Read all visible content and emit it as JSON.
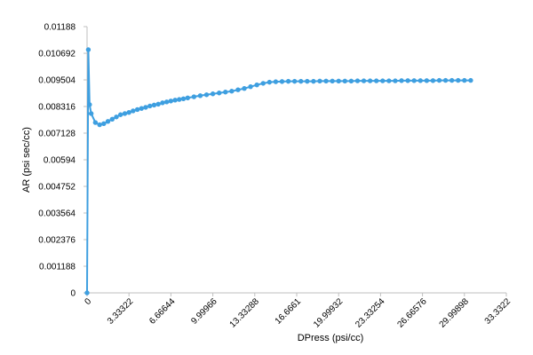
{
  "chart_data": {
    "type": "line",
    "title": "",
    "xlabel": "DPress (psi/cc)",
    "ylabel": "AR (psi sec/cc)",
    "xlim": [
      0,
      33.3322
    ],
    "ylim": [
      0,
      0.01188
    ],
    "x_ticks": [
      "0",
      "3.33322",
      "6.66644",
      "9.99966",
      "13.33288",
      "16.6661",
      "19.99932",
      "23.33254",
      "26.66576",
      "29.99898",
      "33.3322"
    ],
    "y_ticks": [
      "0",
      "0.001188",
      "0.002376",
      "0.003564",
      "0.004752",
      "0.00594",
      "0.007128",
      "0.008316",
      "0.009504",
      "0.01069",
      "0.01188"
    ],
    "y_tick_labels": [
      "0",
      "0.001188",
      "0.002376",
      "0.003564",
      "0.004752",
      "0.00594",
      "0.007128",
      "0.008316",
      "0.009504",
      "0.010692",
      "0.01188"
    ],
    "grid": false,
    "legend": "none",
    "series": [
      {
        "color": "#3e9fe0",
        "x": [
          0.0,
          0.1,
          0.2,
          0.33,
          0.66,
          1.0,
          1.33,
          1.66,
          2.0,
          2.33,
          2.66,
          3.0,
          3.33,
          3.66,
          4.0,
          4.33,
          4.66,
          5.0,
          5.33,
          5.66,
          6.0,
          6.33,
          6.66,
          7.0,
          7.33,
          7.66,
          8.0,
          8.5,
          9.0,
          9.5,
          10.0,
          10.5,
          11.0,
          11.5,
          12.0,
          12.5,
          13.0,
          13.5,
          14.0,
          14.5,
          15.0,
          15.5,
          16.0,
          16.5,
          17.0,
          17.5,
          18.0,
          18.5,
          19.0,
          19.5,
          20.0,
          20.5,
          21.0,
          21.5,
          22.0,
          22.5,
          23.0,
          23.5,
          24.0,
          24.5,
          25.0,
          25.5,
          26.0,
          26.5,
          27.0,
          27.5,
          28.0,
          28.5,
          29.0,
          29.5,
          30.0,
          30.5
        ],
        "y": [
          0.0,
          0.01085,
          0.0084,
          0.008,
          0.0076,
          0.0075,
          0.00755,
          0.00765,
          0.00775,
          0.00785,
          0.00795,
          0.008,
          0.00805,
          0.00812,
          0.00818,
          0.00823,
          0.00828,
          0.00834,
          0.00838,
          0.00842,
          0.00848,
          0.00852,
          0.00856,
          0.0086,
          0.00863,
          0.00866,
          0.0087,
          0.00875,
          0.0088,
          0.00884,
          0.00888,
          0.00892,
          0.00896,
          0.009,
          0.00906,
          0.00912,
          0.0092,
          0.00928,
          0.00935,
          0.0094,
          0.00942,
          0.00943,
          0.00944,
          0.00944,
          0.00944,
          0.00944,
          0.00944,
          0.00945,
          0.00945,
          0.00945,
          0.00945,
          0.00945,
          0.00945,
          0.00946,
          0.00946,
          0.00946,
          0.00946,
          0.00946,
          0.00946,
          0.00946,
          0.00947,
          0.00947,
          0.00947,
          0.00947,
          0.00947,
          0.00947,
          0.00948,
          0.00948,
          0.00948,
          0.00948,
          0.00948,
          0.00948
        ]
      }
    ]
  }
}
